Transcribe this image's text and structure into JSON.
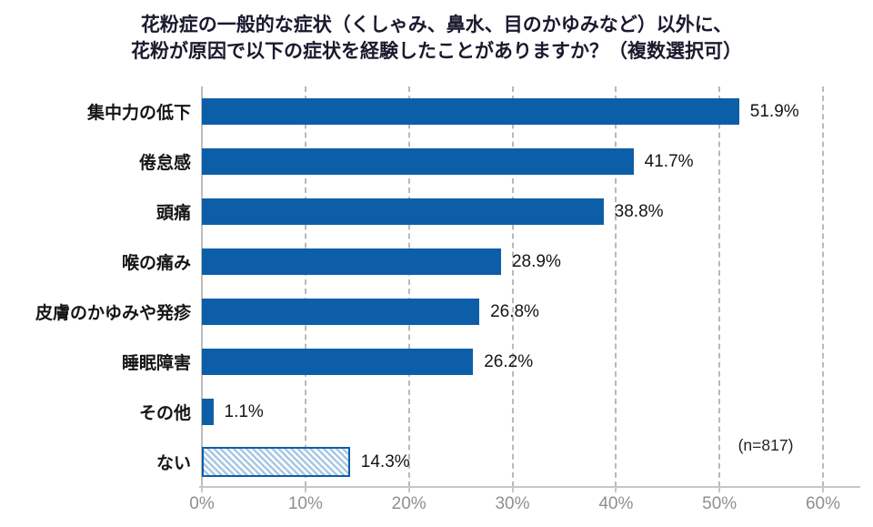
{
  "title": {
    "line1": "花粉症の一般的な症状（くしゃみ、鼻水、目のかゆみなど）以外に、",
    "line2": "花粉が原因で以下の症状を経験したことがありますか？（複数選択可）"
  },
  "chart_data": {
    "type": "bar",
    "orientation": "horizontal",
    "title": "花粉症の一般的な症状（くしゃみ、鼻水、目のかゆみなど）以外に、花粉が原因で以下の症状を経験したことがありますか？（複数選択可）",
    "categories": [
      "集中力の低下",
      "倦怠感",
      "頭痛",
      "喉の痛み",
      "皮膚のかゆみや発疹",
      "睡眠障害",
      "その他",
      "ない"
    ],
    "values": [
      51.9,
      41.7,
      38.8,
      28.9,
      26.8,
      26.2,
      1.1,
      14.3
    ],
    "value_labels": [
      "51.9%",
      "41.7%",
      "38.8%",
      "28.9%",
      "26.8%",
      "26.2%",
      "1.1%",
      "14.3%"
    ],
    "styles": [
      "solid",
      "solid",
      "solid",
      "solid",
      "solid",
      "solid",
      "solid",
      "hatched"
    ],
    "xlim": [
      0,
      60
    ],
    "xtick_labels": [
      "0%",
      "10%",
      "20%",
      "30%",
      "40%",
      "50%",
      "60%"
    ],
    "grid": "vertical-dashed",
    "legend": "none",
    "annotation": "(n=817)",
    "colors": {
      "bar": "#0d5ea8",
      "hatch_stripe": "#a9c6e3",
      "hatch_background": "#ffffff",
      "gridline": "#b9b9b9",
      "tick_text": "#8f8f8f"
    }
  }
}
